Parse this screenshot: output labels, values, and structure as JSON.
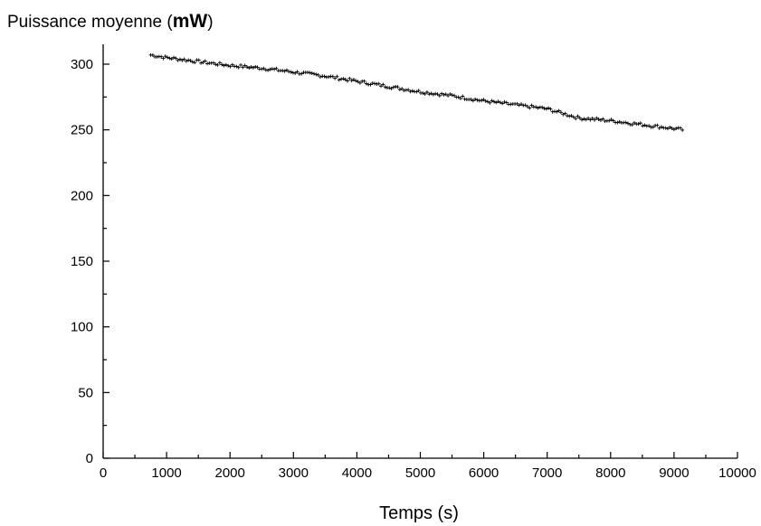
{
  "chart_data": {
    "type": "scatter",
    "title": "",
    "ylabel_prefix": "Puissance moyenne (",
    "ylabel_unit": "mW",
    "ylabel_suffix": ")",
    "xlabel": "Temps (s)",
    "xlim": [
      0,
      10000
    ],
    "ylim": [
      0,
      300
    ],
    "x_ticks": [
      0,
      1000,
      2000,
      3000,
      4000,
      5000,
      6000,
      7000,
      8000,
      9000,
      10000
    ],
    "x_tick_labels": [
      "0",
      "1000",
      "2000",
      "3000",
      "4000",
      "5000",
      "6000",
      "7000",
      "8000",
      "9000",
      "10000"
    ],
    "y_ticks": [
      0,
      50,
      100,
      150,
      200,
      250,
      300
    ],
    "y_tick_labels": [
      "0",
      "50",
      "100",
      "150",
      "200",
      "250",
      "300"
    ],
    "grid": false,
    "marker": "+",
    "series": [
      {
        "x": [
          750,
          1000,
          1500,
          2000,
          2500,
          3000,
          3500,
          4000,
          4500,
          5000,
          5500,
          6000,
          6500,
          7000,
          7500,
          8000,
          8500,
          9000,
          9150
        ],
        "y": [
          307,
          305,
          302,
          299,
          297,
          294,
          291,
          287,
          283,
          279,
          276,
          272,
          269,
          266,
          259,
          257,
          254,
          251,
          250
        ]
      }
    ]
  }
}
